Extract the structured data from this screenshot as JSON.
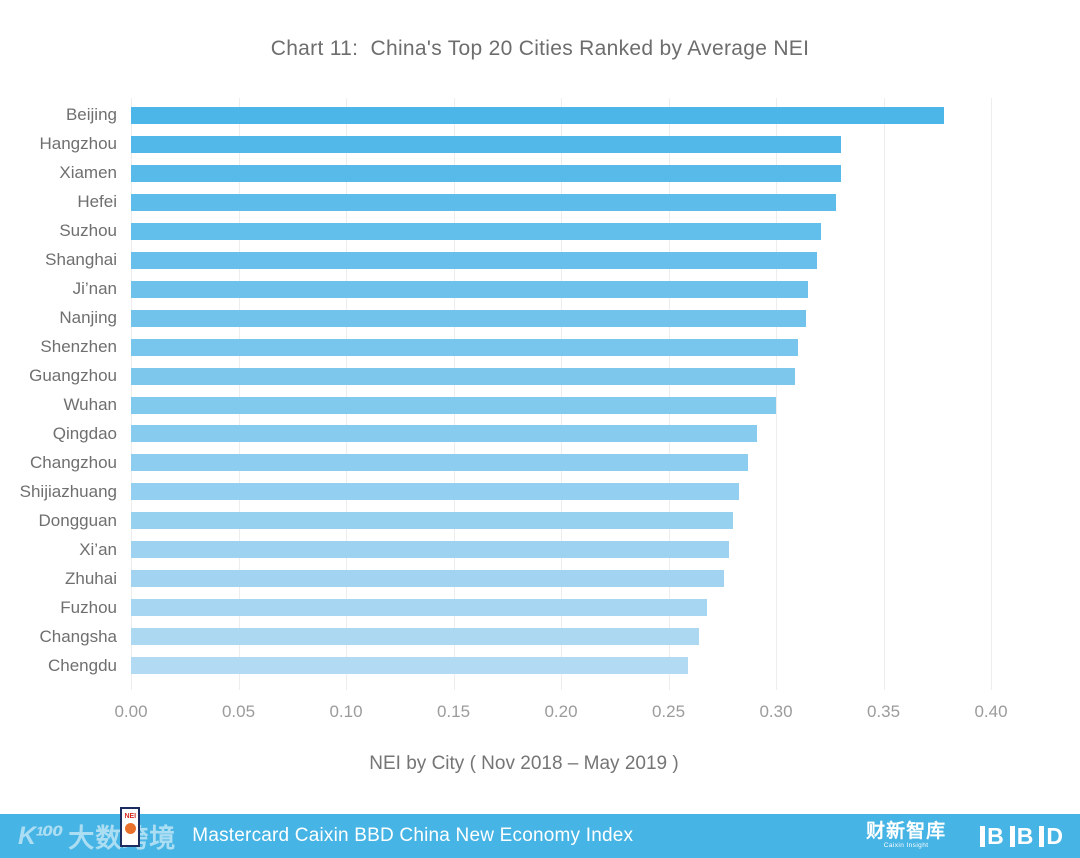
{
  "chart": {
    "title": "Chart 11:  China's Top 20 Cities Ranked by Average NEI"
  },
  "chart_data": {
    "type": "bar",
    "orientation": "horizontal",
    "title": "Chart 11:  China's Top 20 Cities Ranked by Average NEI",
    "categories": [
      "Beijing",
      "Hangzhou",
      "Xiamen",
      "Hefei",
      "Suzhou",
      "Shanghai",
      "Ji’nan",
      "Nanjing",
      "Shenzhen",
      "Guangzhou",
      "Wuhan",
      "Qingdao",
      "Changzhou",
      "Shijiazhuang",
      "Dongguan",
      "Xi’an",
      "Zhuhai",
      "Fuzhou",
      "Changsha",
      "Chengdu"
    ],
    "values": [
      0.378,
      0.33,
      0.33,
      0.328,
      0.321,
      0.319,
      0.315,
      0.314,
      0.31,
      0.309,
      0.3,
      0.291,
      0.287,
      0.283,
      0.28,
      0.278,
      0.276,
      0.268,
      0.264,
      0.259
    ],
    "xlabel": "NEI by City ( Nov 2018 – May 2019 )",
    "ylabel": "",
    "xlim": [
      0,
      0.4
    ],
    "xticks": [
      0.0,
      0.05,
      0.1,
      0.15,
      0.2,
      0.25,
      0.3,
      0.35,
      0.4
    ],
    "xtick_labels": [
      "0.00",
      "0.05",
      "0.10",
      "0.15",
      "0.20",
      "0.25",
      "0.30",
      "0.35",
      "0.40"
    ],
    "grid": true,
    "legend": false,
    "bar_color_start": "#4DB6E8",
    "bar_color_end": "#B2DAF3"
  },
  "colors": {
    "title_text": "#6d6d6d",
    "category_text": "#6f6f6f",
    "tick_text": "#9b9b9b",
    "gridline": "#ededed",
    "footer_background": "#46B4E4",
    "footer_text": "#ffffff",
    "nei_badge_border": "#1d2c5e",
    "nei_badge_text": "#d42b1e"
  },
  "footer": {
    "watermark_k100": "K¹⁰⁰",
    "watermark_cn": "大数跨境",
    "nei_badge": "NEI",
    "title": "Mastercard Caixin BBD China New Economy Index",
    "caixin_cn": "财新智库",
    "caixin_en": "Caixin Insight",
    "bbd": "BBD"
  }
}
